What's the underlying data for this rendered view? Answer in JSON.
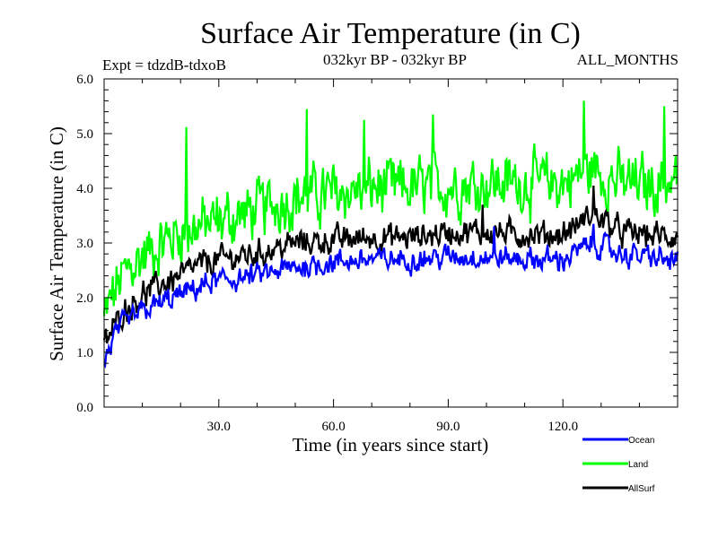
{
  "chart_data": {
    "type": "line",
    "title": "Surface Air Temperature (in C)",
    "subtitle_left": "Expt = tdzdB-tdxoB",
    "subtitle_center": "032kyr BP - 032kyr BP",
    "subtitle_right": "ALL_MONTHS",
    "xlabel": "Time (in years since start)",
    "ylabel": "Surface Air Temperature (in C)",
    "xlim": [
      0,
      150
    ],
    "ylim": [
      0.0,
      6.0
    ],
    "x_ticks": [
      30,
      60,
      90,
      120
    ],
    "x_tick_labels": [
      "30.0",
      "60.0",
      "90.0",
      "120.0"
    ],
    "x_minor_step": 10,
    "y_ticks": [
      0,
      1,
      2,
      3,
      4,
      5,
      6
    ],
    "y_tick_labels": [
      "0.0",
      "1.0",
      "2.0",
      "3.0",
      "4.0",
      "5.0",
      "6.0"
    ],
    "y_minor_step": 0.2,
    "grid": false,
    "legend_position": "bottom-right",
    "samples_per_year": 4,
    "series": [
      {
        "name": "Land",
        "color": "#00ff00",
        "trend_x": [
          0,
          2,
          5,
          10,
          15,
          20,
          25,
          30,
          40,
          50,
          60,
          70,
          80,
          90,
          100,
          110,
          120,
          128,
          135,
          142,
          150
        ],
        "trend_y": [
          1.6,
          2.0,
          2.4,
          2.75,
          3.0,
          3.2,
          3.3,
          3.4,
          3.6,
          3.85,
          3.9,
          4.0,
          4.0,
          4.05,
          4.1,
          4.1,
          4.1,
          4.35,
          4.1,
          4.05,
          4.2
        ],
        "noise_amplitude": 0.55,
        "peaks": [
          [
            21.5,
            5.12
          ],
          [
            53,
            5.45
          ],
          [
            68,
            5.25
          ],
          [
            86,
            5.35
          ],
          [
            125.5,
            5.6
          ],
          [
            146.5,
            5.5
          ]
        ]
      },
      {
        "name": "AllSurf",
        "color": "#000000",
        "trend_x": [
          0,
          2,
          5,
          10,
          15,
          20,
          25,
          30,
          40,
          50,
          60,
          70,
          80,
          90,
          100,
          110,
          120,
          128,
          135,
          142,
          150
        ],
        "trend_y": [
          1.1,
          1.4,
          1.75,
          2.05,
          2.25,
          2.4,
          2.6,
          2.7,
          2.8,
          3.0,
          3.05,
          3.1,
          3.1,
          3.2,
          3.2,
          3.15,
          3.15,
          3.55,
          3.2,
          3.15,
          3.1
        ],
        "noise_amplitude": 0.25,
        "peaks": [
          [
            128,
            4.05
          ],
          [
            99,
            3.7
          ]
        ]
      },
      {
        "name": "Ocean",
        "color": "#0000ff",
        "trend_x": [
          0,
          2,
          5,
          10,
          15,
          20,
          25,
          30,
          40,
          50,
          60,
          70,
          80,
          90,
          100,
          110,
          120,
          128,
          135,
          142,
          150
        ],
        "trend_y": [
          0.8,
          1.2,
          1.5,
          1.75,
          1.9,
          2.05,
          2.2,
          2.3,
          2.4,
          2.55,
          2.65,
          2.7,
          2.7,
          2.75,
          2.75,
          2.7,
          2.7,
          3.0,
          2.8,
          2.75,
          2.65
        ],
        "noise_amplitude": 0.22,
        "peaks": [
          [
            128,
            3.35
          ],
          [
            102,
            3.3
          ]
        ]
      }
    ],
    "legend": [
      {
        "label": "Ocean",
        "color": "#0000ff"
      },
      {
        "label": "Land",
        "color": "#00ff00"
      },
      {
        "label": "AllSurf",
        "color": "#000000"
      }
    ]
  }
}
